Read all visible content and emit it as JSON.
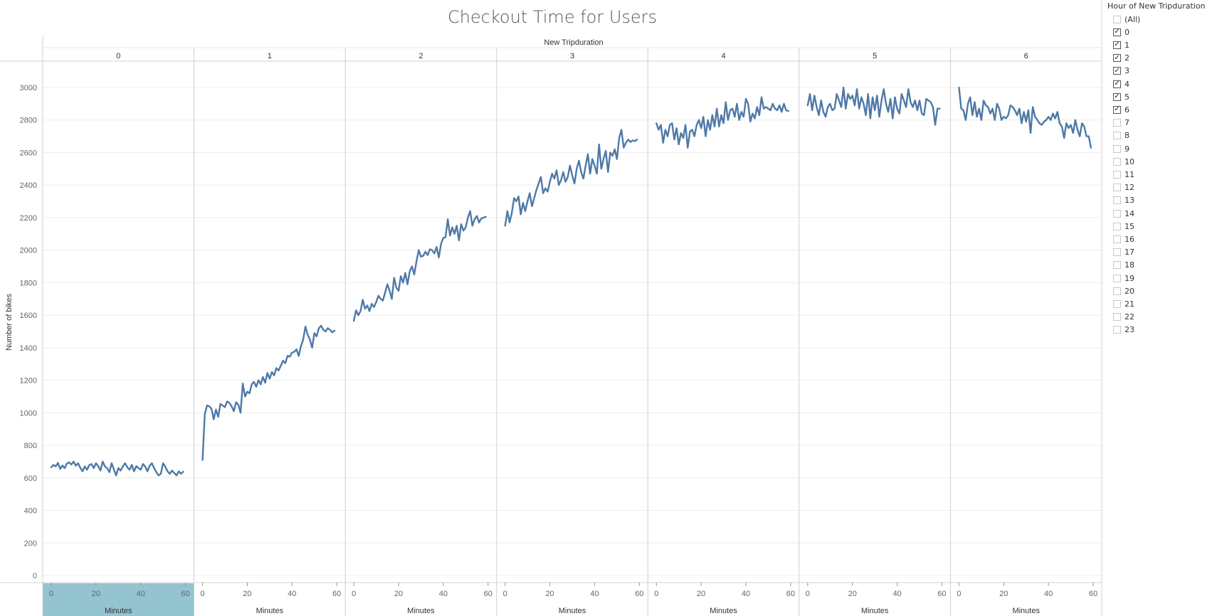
{
  "chart_data": {
    "type": "line",
    "title": "Checkout Time for Users",
    "column_header": "New Tripduration",
    "ylabel": "Number of bikes",
    "xlabel": "Minutes",
    "ylim": [
      0,
      3100
    ],
    "yticks": [
      0,
      200,
      400,
      600,
      800,
      1000,
      1200,
      1400,
      1600,
      1800,
      2000,
      2200,
      2400,
      2600,
      2800,
      3000
    ],
    "xlim": [
      0,
      60
    ],
    "xticks": [
      0,
      20,
      40,
      60
    ],
    "grid": true,
    "highlighted_panel": "0",
    "color": "#4e79a7",
    "panels": [
      {
        "label": "0",
        "x_start": 0,
        "x_end": 59,
        "y_values": [
          665,
          680,
          670,
          692,
          655,
          676,
          660,
          688,
          695,
          682,
          700,
          675,
          690,
          662,
          640,
          670,
          650,
          678,
          685,
          660,
          690,
          672,
          645,
          700,
          670,
          660,
          635,
          690,
          652,
          615,
          660,
          645,
          670,
          690,
          665,
          650,
          680,
          640,
          672,
          660,
          650,
          685,
          670,
          640,
          675,
          690,
          660,
          635,
          615,
          625,
          690,
          668,
          640,
          625,
          645,
          630,
          615,
          640,
          625,
          638
        ]
      },
      {
        "label": "1",
        "x_start": 0,
        "x_end": 59,
        "y_values": [
          710,
          990,
          1045,
          1040,
          1025,
          960,
          1020,
          975,
          1055,
          1045,
          1035,
          1070,
          1060,
          1040,
          1010,
          1065,
          1050,
          1000,
          1180,
          1100,
          1130,
          1120,
          1175,
          1190,
          1160,
          1200,
          1175,
          1220,
          1185,
          1245,
          1210,
          1250,
          1230,
          1275,
          1260,
          1290,
          1320,
          1305,
          1350,
          1345,
          1370,
          1375,
          1390,
          1350,
          1410,
          1450,
          1530,
          1480,
          1450,
          1400,
          1490,
          1470,
          1520,
          1535,
          1510,
          1500,
          1520,
          1510,
          1495,
          1505
        ]
      },
      {
        "label": "2",
        "x_start": 0,
        "x_end": 59,
        "y_values": [
          1565,
          1630,
          1600,
          1625,
          1695,
          1640,
          1660,
          1625,
          1670,
          1650,
          1680,
          1720,
          1700,
          1690,
          1740,
          1790,
          1750,
          1700,
          1830,
          1770,
          1750,
          1840,
          1800,
          1860,
          1790,
          1870,
          1900,
          1850,
          1930,
          2000,
          1960,
          1965,
          1990,
          1970,
          2005,
          2000,
          1980,
          2020,
          1955,
          2040,
          2075,
          2080,
          2190,
          2090,
          2140,
          2100,
          2150,
          2060,
          2160,
          2120,
          2140,
          2200,
          2240,
          2150,
          2190,
          2210,
          2170,
          2195,
          2200,
          2205
        ]
      },
      {
        "label": "3",
        "x_start": 0,
        "x_end": 59,
        "y_values": [
          2150,
          2240,
          2170,
          2230,
          2320,
          2300,
          2330,
          2220,
          2290,
          2240,
          2300,
          2350,
          2270,
          2320,
          2370,
          2410,
          2450,
          2350,
          2380,
          2360,
          2420,
          2470,
          2440,
          2490,
          2400,
          2430,
          2480,
          2420,
          2450,
          2520,
          2460,
          2410,
          2500,
          2550,
          2480,
          2440,
          2520,
          2590,
          2470,
          2560,
          2520,
          2470,
          2650,
          2500,
          2560,
          2610,
          2480,
          2600,
          2580,
          2620,
          2560,
          2690,
          2740,
          2630,
          2660,
          2680,
          2665,
          2675,
          2670,
          2680
        ]
      },
      {
        "label": "4",
        "x_start": 0,
        "x_end": 59,
        "y_values": [
          2780,
          2740,
          2770,
          2660,
          2740,
          2700,
          2770,
          2780,
          2680,
          2750,
          2650,
          2720,
          2690,
          2770,
          2630,
          2730,
          2740,
          2700,
          2770,
          2800,
          2750,
          2820,
          2700,
          2800,
          2740,
          2830,
          2760,
          2870,
          2760,
          2830,
          2780,
          2910,
          2800,
          2860,
          2870,
          2820,
          2900,
          2800,
          2850,
          2820,
          2930,
          2900,
          2790,
          2840,
          2810,
          2880,
          2830,
          2940,
          2870,
          2880,
          2870,
          2860,
          2900,
          2870,
          2860,
          2890,
          2850,
          2900,
          2860,
          2855
        ]
      },
      {
        "label": "5",
        "x_start": 0,
        "x_end": 59,
        "y_values": [
          2890,
          2960,
          2860,
          2950,
          2880,
          2830,
          2920,
          2850,
          2820,
          2880,
          2900,
          2860,
          2870,
          2960,
          2920,
          2880,
          3000,
          2870,
          2960,
          2930,
          2950,
          2890,
          2990,
          2870,
          2940,
          2900,
          2830,
          2960,
          2810,
          2940,
          2860,
          2950,
          2820,
          2920,
          2990,
          2900,
          2850,
          2930,
          2810,
          2940,
          2870,
          2840,
          2960,
          2920,
          2880,
          2990,
          2910,
          2880,
          2920,
          2860,
          2920,
          2840,
          2830,
          2930,
          2920,
          2910,
          2880,
          2770,
          2870,
          2870
        ]
      },
      {
        "label": "6",
        "x_start": 0,
        "x_end": 59,
        "y_values": [
          3000,
          2870,
          2860,
          2800,
          2900,
          2940,
          2830,
          2910,
          2820,
          2870,
          2800,
          2920,
          2890,
          2880,
          2840,
          2870,
          2800,
          2900,
          2870,
          2800,
          2820,
          2810,
          2830,
          2890,
          2880,
          2860,
          2830,
          2870,
          2780,
          2850,
          2790,
          2860,
          2720,
          2880,
          2820,
          2800,
          2780,
          2770,
          2790,
          2800,
          2820,
          2800,
          2840,
          2810,
          2850,
          2780,
          2760,
          2690,
          2780,
          2750,
          2770,
          2720,
          2800,
          2740,
          2700,
          2780,
          2760,
          2700,
          2700,
          2630
        ]
      }
    ]
  },
  "filter": {
    "title": "Hour of New Tripduration",
    "items": [
      {
        "label": "(All)",
        "checked": false
      },
      {
        "label": "0",
        "checked": true
      },
      {
        "label": "1",
        "checked": true
      },
      {
        "label": "2",
        "checked": true
      },
      {
        "label": "3",
        "checked": true
      },
      {
        "label": "4",
        "checked": true
      },
      {
        "label": "5",
        "checked": true
      },
      {
        "label": "6",
        "checked": true
      },
      {
        "label": "7",
        "checked": false
      },
      {
        "label": "8",
        "checked": false
      },
      {
        "label": "9",
        "checked": false
      },
      {
        "label": "10",
        "checked": false
      },
      {
        "label": "11",
        "checked": false
      },
      {
        "label": "12",
        "checked": false
      },
      {
        "label": "13",
        "checked": false
      },
      {
        "label": "14",
        "checked": false
      },
      {
        "label": "15",
        "checked": false
      },
      {
        "label": "16",
        "checked": false
      },
      {
        "label": "17",
        "checked": false
      },
      {
        "label": "18",
        "checked": false
      },
      {
        "label": "19",
        "checked": false
      },
      {
        "label": "20",
        "checked": false
      },
      {
        "label": "21",
        "checked": false
      },
      {
        "label": "22",
        "checked": false
      },
      {
        "label": "23",
        "checked": false
      }
    ]
  }
}
